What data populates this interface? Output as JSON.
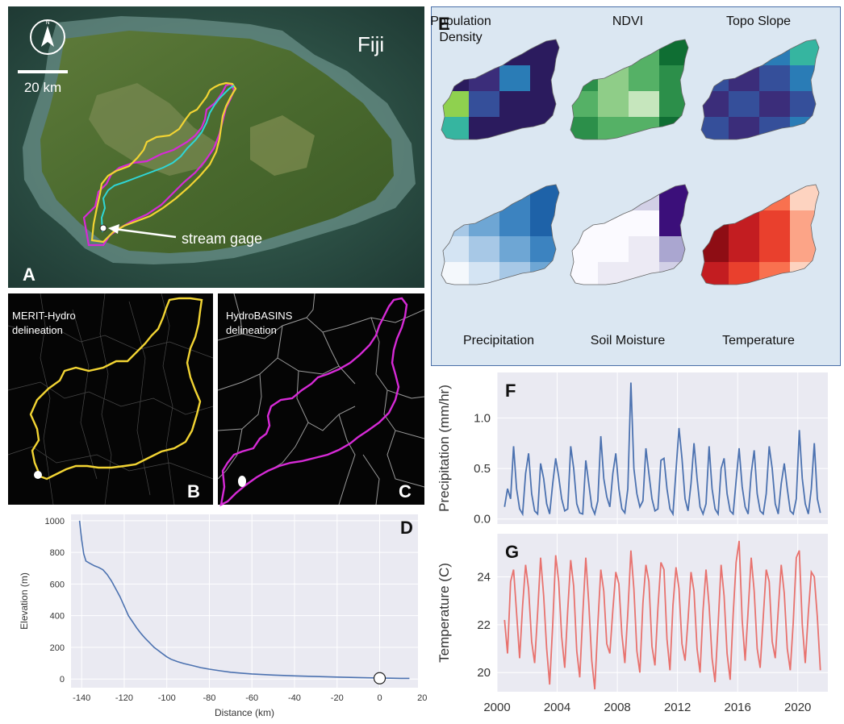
{
  "panel_a": {
    "letter": "A",
    "place_label": "Fiji",
    "scale_label": "20 km",
    "compass_label": "N",
    "gage_label": "stream gage"
  },
  "panel_b": {
    "letter": "B",
    "title_line1": "MERIT-Hydro",
    "title_line2": "delineation"
  },
  "panel_c": {
    "letter": "C",
    "title_line1": "HydroBASINS",
    "title_line2": "delineation"
  },
  "panel_e": {
    "letter": "E",
    "maps": [
      {
        "label_line1": "Population",
        "label_line2": "Density",
        "colormap": "viridis"
      },
      {
        "label_line1": "NDVI",
        "label_line2": "",
        "colormap": "greens"
      },
      {
        "label_line1": "Topo Slope",
        "label_line2": "",
        "colormap": "viridis"
      },
      {
        "label_line1": "Precipitation",
        "label_line2": "",
        "colormap": "blues"
      },
      {
        "label_line1": "Soil Moisture",
        "label_line2": "",
        "colormap": "purples"
      },
      {
        "label_line1": "Temperature",
        "label_line2": "",
        "colormap": "reds"
      }
    ]
  },
  "colors": {
    "merit": "#f2d433",
    "hydrobasins": "#d62ad6",
    "river": "#2fd6d6",
    "elevation_line": "#4c72b0",
    "precip_line": "#4c72b0",
    "temp_line": "#e8726e",
    "seaborn_bg": "#eaeaf2"
  },
  "chart_data": [
    {
      "panel": "D",
      "type": "line",
      "letter": "D",
      "xlabel": "Distance (km)",
      "ylabel": "Elevation (m)",
      "xlim": [
        -145,
        18
      ],
      "ylim": [
        -55,
        1040
      ],
      "xticks": [
        -140,
        -120,
        -100,
        -80,
        -60,
        -40,
        -20,
        0,
        20
      ],
      "yticks": [
        0,
        200,
        400,
        600,
        800,
        1000
      ],
      "grid": true,
      "x": [
        -141,
        -140,
        -139,
        -138,
        -136,
        -134,
        -132,
        -130,
        -128,
        -126,
        -124,
        -122,
        -120,
        -118,
        -116,
        -114,
        -112,
        -110,
        -108,
        -106,
        -104,
        -102,
        -100,
        -98,
        -95,
        -92,
        -88,
        -84,
        -80,
        -75,
        -70,
        -65,
        -60,
        -50,
        -40,
        -30,
        -20,
        -10,
        0,
        5,
        10,
        14
      ],
      "y": [
        1000,
        880,
        790,
        745,
        730,
        715,
        705,
        690,
        660,
        620,
        570,
        520,
        460,
        400,
        360,
        320,
        285,
        255,
        228,
        200,
        180,
        160,
        140,
        125,
        110,
        98,
        85,
        72,
        62,
        52,
        43,
        37,
        32,
        25,
        20,
        16,
        12,
        9,
        6,
        5,
        4,
        4
      ],
      "marker": {
        "x": 0,
        "y": 5
      }
    },
    {
      "panel": "F",
      "type": "line",
      "letter": "F",
      "ylabel": "Precipitation (mm/hr)",
      "xlim": [
        2000,
        2022
      ],
      "ylim": [
        -0.05,
        1.45
      ],
      "yticks": [
        0.0,
        0.5,
        1.0
      ],
      "xticks": [
        2000,
        2004,
        2008,
        2012,
        2016,
        2020
      ],
      "grid": true,
      "x": [
        2000.5,
        2000.7,
        2000.9,
        2001.1,
        2001.3,
        2001.5,
        2001.7,
        2001.9,
        2002.1,
        2002.3,
        2002.5,
        2002.7,
        2002.9,
        2003.1,
        2003.3,
        2003.5,
        2003.7,
        2003.9,
        2004.1,
        2004.3,
        2004.5,
        2004.7,
        2004.9,
        2005.1,
        2005.3,
        2005.5,
        2005.7,
        2005.9,
        2006.1,
        2006.3,
        2006.5,
        2006.7,
        2006.9,
        2007.1,
        2007.3,
        2007.5,
        2007.7,
        2007.9,
        2008.1,
        2008.3,
        2008.5,
        2008.7,
        2008.9,
        2009.1,
        2009.3,
        2009.5,
        2009.7,
        2009.9,
        2010.1,
        2010.3,
        2010.5,
        2010.7,
        2010.9,
        2011.1,
        2011.3,
        2011.5,
        2011.7,
        2011.9,
        2012.1,
        2012.3,
        2012.5,
        2012.7,
        2012.9,
        2013.1,
        2013.3,
        2013.5,
        2013.7,
        2013.9,
        2014.1,
        2014.3,
        2014.5,
        2014.7,
        2014.9,
        2015.1,
        2015.3,
        2015.5,
        2015.7,
        2015.9,
        2016.1,
        2016.3,
        2016.5,
        2016.7,
        2016.9,
        2017.1,
        2017.3,
        2017.5,
        2017.7,
        2017.9,
        2018.1,
        2018.3,
        2018.5,
        2018.7,
        2018.9,
        2019.1,
        2019.3,
        2019.5,
        2019.7,
        2019.9,
        2020.1,
        2020.3,
        2020.5,
        2020.7,
        2020.9,
        2021.1,
        2021.3,
        2021.5
      ],
      "y": [
        0.12,
        0.3,
        0.2,
        0.72,
        0.3,
        0.1,
        0.05,
        0.45,
        0.65,
        0.25,
        0.08,
        0.05,
        0.55,
        0.4,
        0.15,
        0.05,
        0.35,
        0.6,
        0.42,
        0.2,
        0.08,
        0.1,
        0.72,
        0.5,
        0.15,
        0.06,
        0.05,
        0.58,
        0.35,
        0.12,
        0.05,
        0.18,
        0.82,
        0.4,
        0.22,
        0.12,
        0.45,
        0.65,
        0.3,
        0.1,
        0.06,
        0.3,
        1.35,
        0.5,
        0.25,
        0.12,
        0.18,
        0.7,
        0.45,
        0.2,
        0.08,
        0.1,
        0.58,
        0.6,
        0.3,
        0.1,
        0.05,
        0.48,
        0.9,
        0.6,
        0.2,
        0.08,
        0.35,
        0.75,
        0.4,
        0.12,
        0.05,
        0.15,
        0.72,
        0.3,
        0.1,
        0.05,
        0.5,
        0.6,
        0.25,
        0.08,
        0.05,
        0.38,
        0.7,
        0.32,
        0.12,
        0.05,
        0.45,
        0.68,
        0.25,
        0.08,
        0.05,
        0.25,
        0.72,
        0.5,
        0.15,
        0.05,
        0.35,
        0.55,
        0.3,
        0.08,
        0.05,
        0.2,
        0.88,
        0.4,
        0.15,
        0.05,
        0.3,
        0.75,
        0.2,
        0.06
      ]
    },
    {
      "panel": "G",
      "type": "line",
      "letter": "G",
      "ylabel": "Temperature (C)",
      "xlim": [
        2000,
        2022
      ],
      "ylim": [
        19.2,
        25.8
      ],
      "yticks": [
        20,
        22,
        24
      ],
      "xticks": [
        2000,
        2004,
        2008,
        2012,
        2016,
        2020
      ],
      "xticklabels": [
        "2000",
        "2004",
        "2008",
        "2012",
        "2016",
        "2020"
      ],
      "grid": true,
      "x": [
        2000.5,
        2000.7,
        2000.9,
        2001.1,
        2001.3,
        2001.5,
        2001.7,
        2001.9,
        2002.1,
        2002.3,
        2002.5,
        2002.7,
        2002.9,
        2003.1,
        2003.3,
        2003.5,
        2003.7,
        2003.9,
        2004.1,
        2004.3,
        2004.5,
        2004.7,
        2004.9,
        2005.1,
        2005.3,
        2005.5,
        2005.7,
        2005.9,
        2006.1,
        2006.3,
        2006.5,
        2006.7,
        2006.9,
        2007.1,
        2007.3,
        2007.5,
        2007.7,
        2007.9,
        2008.1,
        2008.3,
        2008.5,
        2008.7,
        2008.9,
        2009.1,
        2009.3,
        2009.5,
        2009.7,
        2009.9,
        2010.1,
        2010.3,
        2010.5,
        2010.7,
        2010.9,
        2011.1,
        2011.3,
        2011.5,
        2011.7,
        2011.9,
        2012.1,
        2012.3,
        2012.5,
        2012.7,
        2012.9,
        2013.1,
        2013.3,
        2013.5,
        2013.7,
        2013.9,
        2014.1,
        2014.3,
        2014.5,
        2014.7,
        2014.9,
        2015.1,
        2015.3,
        2015.5,
        2015.7,
        2015.9,
        2016.1,
        2016.3,
        2016.5,
        2016.7,
        2016.9,
        2017.1,
        2017.3,
        2017.5,
        2017.7,
        2017.9,
        2018.1,
        2018.3,
        2018.5,
        2018.7,
        2018.9,
        2019.1,
        2019.3,
        2019.5,
        2019.7,
        2019.9,
        2020.1,
        2020.3,
        2020.5,
        2020.7,
        2020.9,
        2021.1,
        2021.3,
        2021.5
      ],
      "y": [
        22.2,
        20.8,
        23.8,
        24.3,
        22.5,
        20.6,
        22.8,
        24.5,
        23.5,
        21.3,
        20.4,
        22.5,
        24.8,
        23.2,
        21.0,
        19.5,
        22.0,
        24.9,
        23.8,
        21.5,
        20.2,
        22.6,
        24.7,
        23.6,
        20.9,
        19.8,
        22.4,
        24.8,
        22.9,
        20.5,
        19.3,
        22.0,
        24.3,
        23.4,
        21.2,
        20.8,
        22.6,
        24.2,
        23.7,
        21.6,
        20.4,
        22.5,
        25.1,
        23.5,
        20.9,
        20.0,
        22.9,
        24.5,
        23.8,
        21.1,
        20.3,
        22.7,
        24.6,
        24.3,
        21.4,
        20.1,
        22.8,
        24.4,
        23.5,
        21.2,
        20.5,
        22.2,
        24.2,
        23.4,
        21.0,
        20.0,
        22.6,
        24.3,
        22.8,
        20.6,
        19.6,
        22.0,
        24.5,
        23.2,
        20.8,
        19.7,
        22.4,
        24.6,
        25.5,
        22.2,
        20.5,
        22.6,
        24.8,
        23.4,
        21.0,
        20.2,
        22.3,
        24.3,
        23.8,
        21.3,
        20.6,
        22.6,
        24.5,
        23.3,
        21.0,
        20.1,
        22.1,
        24.8,
        25.1,
        22.0,
        20.4,
        22.5,
        24.2,
        24.0,
        22.3,
        20.1
      ]
    }
  ]
}
